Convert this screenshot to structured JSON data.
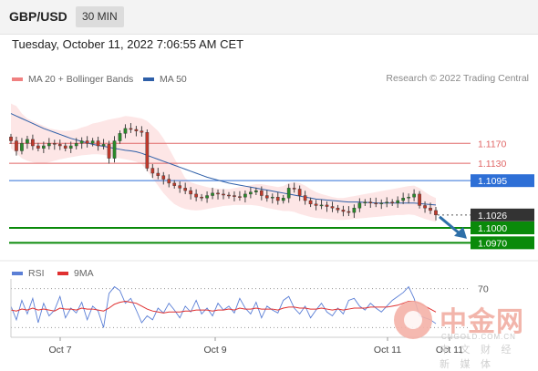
{
  "header": {
    "symbol": "GBP/USD",
    "interval": "30 MIN",
    "datetime": "Tuesday, October 11, 2022 7:06:55 AM CET"
  },
  "legend": {
    "ma20": "MA 20 + Bollinger Bands",
    "ma50": "MA 50",
    "ma20_color": "#f08080",
    "ma50_color": "#2e5fa8",
    "credit": "Research © 2022 Trading Central"
  },
  "rsi_legend": {
    "rsi": "RSI",
    "ma9": "9MA",
    "rsi_color": "#5b7fd6",
    "ma9_color": "#e03030"
  },
  "colors": {
    "resistance": "#e06666",
    "pivot": "#2e6fd6",
    "support": "#0a8a0a",
    "current": "#333333",
    "arrow": "#2e6fa8",
    "band_fill": "#fde3e3"
  },
  "watermark": {
    "cn": "中金网",
    "domain": "CNGOLD.COM.CN",
    "sub": "中 文 财 经 新 媒 体"
  },
  "chart_data": [
    {
      "type": "candlestick",
      "title": "GBP/USD 30 MIN",
      "x_tick_labels": [
        "Oct 7",
        "Oct 9",
        "Oct 11",
        "Oct 11"
      ],
      "price_range": [
        1.0945,
        1.1275
      ],
      "levels": [
        {
          "name": "resistance-2",
          "value": 1.117,
          "label": "1.1170",
          "style": "resistance"
        },
        {
          "name": "resistance-1",
          "value": 1.113,
          "label": "1.1130",
          "style": "resistance"
        },
        {
          "name": "pivot",
          "value": 1.1095,
          "label": "1.1095",
          "style": "pivot"
        },
        {
          "name": "current-price",
          "value": 1.1026,
          "label": "1.1026",
          "style": "current"
        },
        {
          "name": "support-1",
          "value": 1.1,
          "label": "1.1000",
          "style": "support"
        },
        {
          "name": "support-2",
          "value": 1.097,
          "label": "1.0970",
          "style": "support"
        }
      ],
      "close_series": [
        1.1175,
        1.1155,
        1.117,
        1.1178,
        1.1165,
        1.116,
        1.1165,
        1.117,
        1.1168,
        1.1165,
        1.116,
        1.1165,
        1.117,
        1.1175,
        1.117,
        1.1175,
        1.1165,
        1.1168,
        1.114,
        1.1175,
        1.119,
        1.12,
        1.1198,
        1.1195,
        1.1192,
        1.112,
        1.111,
        1.1105,
        1.1098,
        1.109,
        1.1085,
        1.108,
        1.1075,
        1.1068,
        1.1062,
        1.106,
        1.1065,
        1.107,
        1.1068,
        1.1066,
        1.1065,
        1.1063,
        1.1062,
        1.1068,
        1.1072,
        1.1075,
        1.1065,
        1.106,
        1.1062,
        1.1055,
        1.106,
        1.108,
        1.1078,
        1.1065,
        1.1055,
        1.1048,
        1.1045,
        1.1046,
        1.1043,
        1.104,
        1.1036,
        1.1033,
        1.1031,
        1.104,
        1.105,
        1.1052,
        1.105,
        1.1049,
        1.105,
        1.1052,
        1.105,
        1.1055,
        1.106,
        1.1062,
        1.1068,
        1.1045,
        1.104,
        1.1035,
        1.1026
      ],
      "ma50": [
        1.123,
        1.1225,
        1.122,
        1.1215,
        1.121,
        1.1205,
        1.12,
        1.1196,
        1.1192,
        1.1188,
        1.1184,
        1.118,
        1.1177,
        1.1174,
        1.1171,
        1.1168,
        1.1166,
        1.1164,
        1.1162,
        1.116,
        1.1158,
        1.1156,
        1.1155,
        1.1153,
        1.115,
        1.1146,
        1.1142,
        1.1138,
        1.1134,
        1.113,
        1.1126,
        1.1122,
        1.1118,
        1.1114,
        1.111,
        1.1106,
        1.1102,
        1.1099,
        1.1096,
        1.1093,
        1.109,
        1.1088,
        1.1086,
        1.1084,
        1.1082,
        1.108,
        1.1078,
        1.1076,
        1.1074,
        1.1072,
        1.107,
        1.1068,
        1.1066,
        1.1064,
        1.1062,
        1.106,
        1.1058,
        1.1057,
        1.1056,
        1.1055,
        1.1054,
        1.1053,
        1.1052,
        1.1052,
        1.1052,
        1.1051,
        1.1051,
        1.105,
        1.105,
        1.105,
        1.105,
        1.105,
        1.105,
        1.105,
        1.105,
        1.1049,
        1.1048,
        1.1047,
        1.1046
      ],
      "band_upper": [
        1.125,
        1.1245,
        1.123,
        1.122,
        1.1215,
        1.121,
        1.1205,
        1.12,
        1.1198,
        1.1196,
        1.1195,
        1.1196,
        1.1198,
        1.1202,
        1.1205,
        1.121,
        1.1212,
        1.1215,
        1.1218,
        1.122,
        1.1222,
        1.1225,
        1.1224,
        1.1222,
        1.122,
        1.1215,
        1.1205,
        1.1195,
        1.118,
        1.116,
        1.114,
        1.112,
        1.11,
        1.1092,
        1.1088,
        1.1085,
        1.1082,
        1.108,
        1.1079,
        1.1078,
        1.1078,
        1.108,
        1.1082,
        1.1084,
        1.1086,
        1.1088,
        1.1088,
        1.1086,
        1.1084,
        1.1082,
        1.1084,
        1.109,
        1.1092,
        1.109,
        1.1085,
        1.1078,
        1.1072,
        1.1068,
        1.1065,
        1.1062,
        1.106,
        1.106,
        1.1062,
        1.1064,
        1.1066,
        1.1068,
        1.107,
        1.1072,
        1.1074,
        1.1076,
        1.1078,
        1.108,
        1.1082,
        1.1084,
        1.1085,
        1.108,
        1.1072,
        1.1065,
        1.106
      ],
      "band_lower": [
        1.116,
        1.115,
        1.114,
        1.1135,
        1.1132,
        1.113,
        1.113,
        1.1132,
        1.1135,
        1.1138,
        1.114,
        1.1142,
        1.1144,
        1.1146,
        1.1147,
        1.1148,
        1.1148,
        1.1147,
        1.1145,
        1.1142,
        1.114,
        1.1138,
        1.1136,
        1.1133,
        1.1128,
        1.1115,
        1.11,
        1.1085,
        1.107,
        1.1058,
        1.1048,
        1.1042,
        1.1038,
        1.1036,
        1.1035,
        1.1036,
        1.1038,
        1.104,
        1.1042,
        1.1044,
        1.1045,
        1.1046,
        1.1046,
        1.1046,
        1.1046,
        1.1045,
        1.1043,
        1.104,
        1.1038,
        1.1036,
        1.1034,
        1.1034,
        1.1032,
        1.1028,
        1.1025,
        1.1022,
        1.102,
        1.1019,
        1.1018,
        1.1017,
        1.1016,
        1.1016,
        1.1017,
        1.1018,
        1.1019,
        1.102,
        1.1021,
        1.1022,
        1.1023,
        1.1024,
        1.1025,
        1.1026,
        1.1026,
        1.1027,
        1.1026,
        1.1022,
        1.1018,
        1.1015,
        1.1012
      ]
    },
    {
      "type": "line",
      "title": "RSI",
      "ylim": [
        20,
        80
      ],
      "y_tick_labels": [
        "70"
      ],
      "series": [
        {
          "name": "RSI",
          "values": [
            52,
            38,
            58,
            44,
            60,
            35,
            55,
            42,
            48,
            62,
            40,
            50,
            45,
            56,
            38,
            52,
            47,
            30,
            65,
            72,
            68,
            55,
            60,
            48,
            35,
            42,
            38,
            50,
            45,
            55,
            48,
            40,
            52,
            46,
            58,
            44,
            50,
            42,
            55,
            48,
            52,
            45,
            60,
            50,
            44,
            56,
            40,
            52,
            48,
            45,
            58,
            62,
            50,
            44,
            52,
            40,
            48,
            55,
            46,
            42,
            50,
            44,
            58,
            60,
            52,
            48,
            55,
            50,
            46,
            52,
            58,
            62,
            66,
            72,
            60,
            42,
            40,
            38,
            34
          ]
        },
        {
          "name": "9MA",
          "values": [
            48,
            47,
            49,
            48,
            50,
            48,
            49,
            48,
            47,
            50,
            49,
            49,
            48,
            50,
            49,
            49,
            48,
            47,
            50,
            54,
            56,
            57,
            56,
            55,
            52,
            49,
            47,
            46,
            45,
            46,
            46,
            46,
            47,
            47,
            48,
            48,
            48,
            47,
            48,
            48,
            49,
            48,
            50,
            49,
            49,
            50,
            49,
            49,
            49,
            48,
            50,
            51,
            51,
            50,
            50,
            49,
            49,
            50,
            49,
            48,
            49,
            48,
            49,
            50,
            50,
            50,
            51,
            51,
            51,
            51,
            52,
            53,
            55,
            57,
            57,
            55,
            52,
            49,
            46
          ]
        }
      ]
    }
  ]
}
